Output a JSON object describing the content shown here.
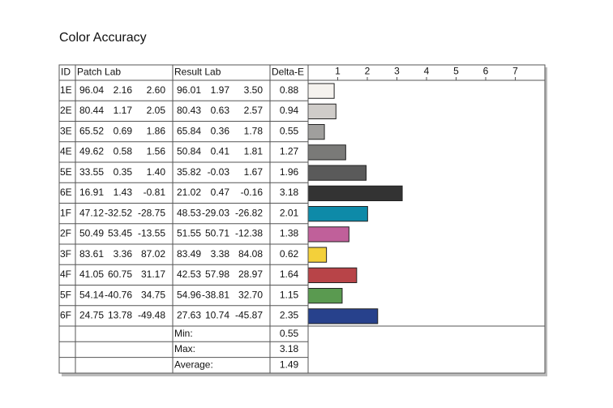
{
  "title": "Color Accuracy",
  "table": {
    "headers": [
      "ID",
      "Patch Lab",
      "Result Lab",
      "Delta-E"
    ],
    "patch_lab": [
      [
        "96.04",
        "2.16",
        "2.60"
      ],
      [
        "80.44",
        "1.17",
        "2.05"
      ],
      [
        "65.52",
        "0.69",
        "1.86"
      ],
      [
        "49.62",
        "0.58",
        "1.56"
      ],
      [
        "33.55",
        "0.35",
        "1.40"
      ],
      [
        "16.91",
        "1.43",
        "-0.81"
      ],
      [
        "47.12",
        "-32.52",
        "-28.75"
      ],
      [
        "50.49",
        "53.45",
        "-13.55"
      ],
      [
        "83.61",
        "3.36",
        "87.02"
      ],
      [
        "41.05",
        "60.75",
        "31.17"
      ],
      [
        "54.14",
        "-40.76",
        "34.75"
      ],
      [
        "24.75",
        "13.78",
        "-49.48"
      ]
    ],
    "result_lab": [
      [
        "96.01",
        "1.97",
        "3.50"
      ],
      [
        "80.43",
        "0.63",
        "2.57"
      ],
      [
        "65.84",
        "0.36",
        "1.78"
      ],
      [
        "50.84",
        "0.41",
        "1.81"
      ],
      [
        "35.82",
        "-0.03",
        "1.67"
      ],
      [
        "21.02",
        "0.47",
        "-0.16"
      ],
      [
        "48.53",
        "-29.03",
        "-26.82"
      ],
      [
        "51.55",
        "50.71",
        "-12.38"
      ],
      [
        "83.49",
        "3.38",
        "84.08"
      ],
      [
        "42.53",
        "57.98",
        "28.97"
      ],
      [
        "54.96",
        "-38.81",
        "32.70"
      ],
      [
        "27.63",
        "10.74",
        "-45.87"
      ]
    ],
    "summary_labels": [
      "Min:",
      "Max:",
      "Average:"
    ],
    "summary_values": [
      0.55,
      3.18,
      1.49
    ]
  },
  "chart_data": {
    "type": "bar",
    "orientation": "horizontal",
    "categories": [
      "1E",
      "2E",
      "3E",
      "4E",
      "5E",
      "6E",
      "1F",
      "2F",
      "3F",
      "4F",
      "5F",
      "6F"
    ],
    "values": [
      0.88,
      0.94,
      0.55,
      1.27,
      1.96,
      3.18,
      2.01,
      1.38,
      0.62,
      1.64,
      1.15,
      2.35
    ],
    "colors": [
      "#f5f2ee",
      "#cfccc9",
      "#a09f9d",
      "#7a7a78",
      "#5a5a5a",
      "#333333",
      "#0e8aa8",
      "#c0609a",
      "#f3d03a",
      "#b84448",
      "#5a9a50",
      "#27418c"
    ],
    "xlim": [
      0,
      8
    ],
    "xticks": [
      1,
      2,
      3,
      4,
      5,
      6,
      7
    ]
  }
}
